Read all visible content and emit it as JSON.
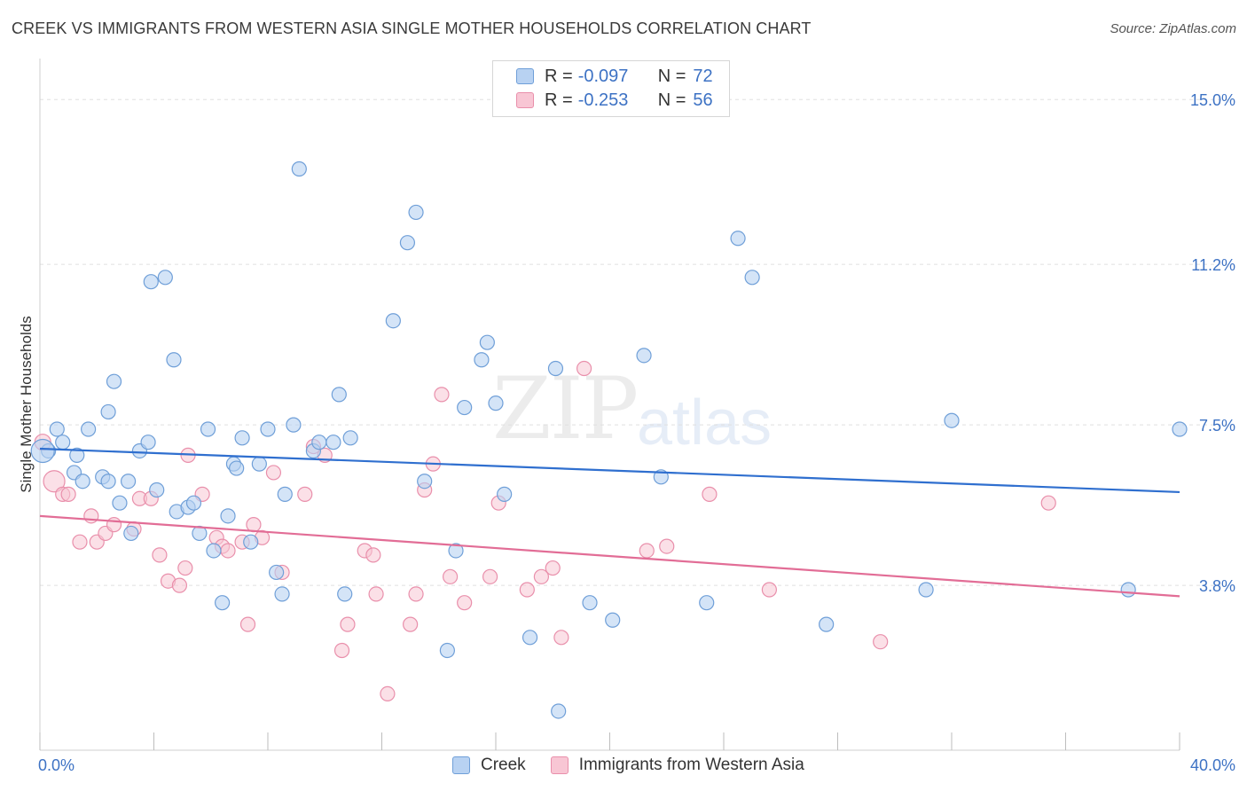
{
  "header": {
    "title": "CREEK VS IMMIGRANTS FROM WESTERN ASIA SINGLE MOTHER HOUSEHOLDS CORRELATION CHART",
    "source": "Source: ZipAtlas.com"
  },
  "watermark": {
    "zip": "ZIP",
    "atlas": "atlas"
  },
  "legend": {
    "rows": [
      {
        "r_label": "R =",
        "r_value": "-0.097",
        "n_label": "N =",
        "n_value": "72"
      },
      {
        "r_label": "R =",
        "r_value": "-0.253",
        "n_label": "N =",
        "n_value": "56"
      }
    ]
  },
  "bottom_legend": {
    "creek": "Creek",
    "immigrants": "Immigrants from Western Asia"
  },
  "colors": {
    "creek_fill": "#b8d2f2",
    "creek_stroke": "#6f9fd8",
    "creek_line": "#2f6fcf",
    "imm_fill": "#f8c6d4",
    "imm_stroke": "#e98fab",
    "imm_line": "#e26d96",
    "tick_text": "#3d72c4",
    "grid": "#e0e0e0"
  },
  "chart_data": {
    "type": "scatter",
    "title": "CREEK VS IMMIGRANTS FROM WESTERN ASIA SINGLE MOTHER HOUSEHOLDS CORRELATION CHART",
    "xlabel": "",
    "ylabel": "Single Mother Households",
    "xlim": [
      0,
      40
    ],
    "ylim": [
      0,
      15.7
    ],
    "x_tick_labels": [
      "0.0%",
      "40.0%"
    ],
    "y_ticks": [
      3.8,
      7.5,
      11.2,
      15.0
    ],
    "y_tick_labels": [
      "3.8%",
      "7.5%",
      "11.2%",
      "15.0%"
    ],
    "grid": "horizontal dashed",
    "legend_position": "top-center",
    "series": [
      {
        "name": "Creek",
        "trend": {
          "x": [
            0,
            40
          ],
          "y": [
            6.95,
            5.95
          ]
        },
        "points": [
          [
            0.3,
            6.9
          ],
          [
            0.6,
            7.4
          ],
          [
            0.8,
            7.1
          ],
          [
            1.2,
            6.4
          ],
          [
            1.3,
            6.8
          ],
          [
            1.5,
            6.2
          ],
          [
            1.7,
            7.4
          ],
          [
            2.2,
            6.3
          ],
          [
            2.4,
            6.2
          ],
          [
            2.4,
            7.8
          ],
          [
            2.6,
            8.5
          ],
          [
            2.8,
            5.7
          ],
          [
            3.1,
            6.2
          ],
          [
            3.2,
            5.0
          ],
          [
            3.5,
            6.9
          ],
          [
            3.8,
            7.1
          ],
          [
            4.1,
            6.0
          ],
          [
            3.9,
            10.8
          ],
          [
            4.4,
            10.9
          ],
          [
            4.7,
            9.0
          ],
          [
            4.8,
            5.5
          ],
          [
            5.2,
            5.6
          ],
          [
            5.4,
            5.7
          ],
          [
            5.6,
            5.0
          ],
          [
            5.9,
            7.4
          ],
          [
            6.1,
            4.6
          ],
          [
            6.4,
            3.4
          ],
          [
            6.6,
            5.4
          ],
          [
            6.8,
            6.6
          ],
          [
            6.9,
            6.5
          ],
          [
            7.1,
            7.2
          ],
          [
            7.4,
            4.8
          ],
          [
            7.7,
            6.6
          ],
          [
            8.0,
            7.4
          ],
          [
            8.3,
            4.1
          ],
          [
            8.5,
            3.6
          ],
          [
            8.6,
            5.9
          ],
          [
            8.9,
            7.5
          ],
          [
            9.1,
            13.4
          ],
          [
            9.6,
            6.9
          ],
          [
            9.8,
            7.1
          ],
          [
            10.3,
            7.1
          ],
          [
            10.5,
            8.2
          ],
          [
            10.7,
            3.6
          ],
          [
            10.9,
            7.2
          ],
          [
            12.4,
            9.9
          ],
          [
            12.9,
            11.7
          ],
          [
            13.2,
            12.4
          ],
          [
            13.5,
            6.2
          ],
          [
            14.3,
            2.3
          ],
          [
            14.6,
            4.6
          ],
          [
            14.9,
            7.9
          ],
          [
            15.5,
            9.0
          ],
          [
            15.7,
            9.4
          ],
          [
            16.0,
            8.0
          ],
          [
            16.3,
            5.9
          ],
          [
            17.2,
            2.6
          ],
          [
            18.1,
            8.8
          ],
          [
            18.2,
            0.9
          ],
          [
            19.3,
            3.4
          ],
          [
            20.1,
            3.0
          ],
          [
            21.2,
            9.1
          ],
          [
            21.8,
            6.3
          ],
          [
            23.4,
            3.4
          ],
          [
            24.5,
            11.8
          ],
          [
            25.0,
            10.9
          ],
          [
            27.6,
            2.9
          ],
          [
            31.1,
            3.7
          ],
          [
            32.0,
            7.6
          ],
          [
            38.2,
            3.7
          ],
          [
            40.0,
            7.4
          ],
          [
            0.1,
            6.9
          ]
        ]
      },
      {
        "name": "Immigrants from Western Asia",
        "trend": {
          "x": [
            0,
            40
          ],
          "y": [
            5.4,
            3.55
          ]
        },
        "points": [
          [
            0.1,
            7.1
          ],
          [
            0.5,
            6.2
          ],
          [
            0.8,
            5.9
          ],
          [
            1.0,
            5.9
          ],
          [
            1.4,
            4.8
          ],
          [
            2.0,
            4.8
          ],
          [
            1.8,
            5.4
          ],
          [
            2.3,
            5.0
          ],
          [
            2.6,
            5.2
          ],
          [
            3.3,
            5.1
          ],
          [
            3.5,
            5.8
          ],
          [
            3.9,
            5.8
          ],
          [
            4.2,
            4.5
          ],
          [
            4.5,
            3.9
          ],
          [
            4.9,
            3.8
          ],
          [
            5.1,
            4.2
          ],
          [
            5.2,
            6.8
          ],
          [
            5.7,
            5.9
          ],
          [
            6.2,
            4.9
          ],
          [
            6.4,
            4.7
          ],
          [
            6.6,
            4.6
          ],
          [
            7.1,
            4.8
          ],
          [
            7.5,
            5.2
          ],
          [
            7.3,
            2.9
          ],
          [
            7.8,
            4.9
          ],
          [
            8.2,
            6.4
          ],
          [
            8.5,
            4.1
          ],
          [
            9.3,
            5.9
          ],
          [
            9.6,
            7.0
          ],
          [
            10.0,
            6.8
          ],
          [
            10.6,
            2.3
          ],
          [
            10.8,
            2.9
          ],
          [
            11.4,
            4.6
          ],
          [
            11.7,
            4.5
          ],
          [
            11.8,
            3.6
          ],
          [
            12.2,
            1.3
          ],
          [
            13.0,
            2.9
          ],
          [
            13.2,
            3.6
          ],
          [
            13.5,
            6.0
          ],
          [
            13.8,
            6.6
          ],
          [
            14.1,
            8.2
          ],
          [
            14.4,
            4.0
          ],
          [
            14.9,
            3.4
          ],
          [
            15.8,
            4.0
          ],
          [
            16.1,
            5.7
          ],
          [
            17.1,
            3.7
          ],
          [
            17.6,
            4.0
          ],
          [
            18.0,
            4.2
          ],
          [
            18.3,
            2.6
          ],
          [
            19.1,
            8.8
          ],
          [
            21.3,
            4.6
          ],
          [
            22.0,
            4.7
          ],
          [
            23.5,
            5.9
          ],
          [
            25.6,
            3.7
          ],
          [
            29.5,
            2.5
          ],
          [
            35.4,
            5.7
          ]
        ]
      }
    ]
  }
}
